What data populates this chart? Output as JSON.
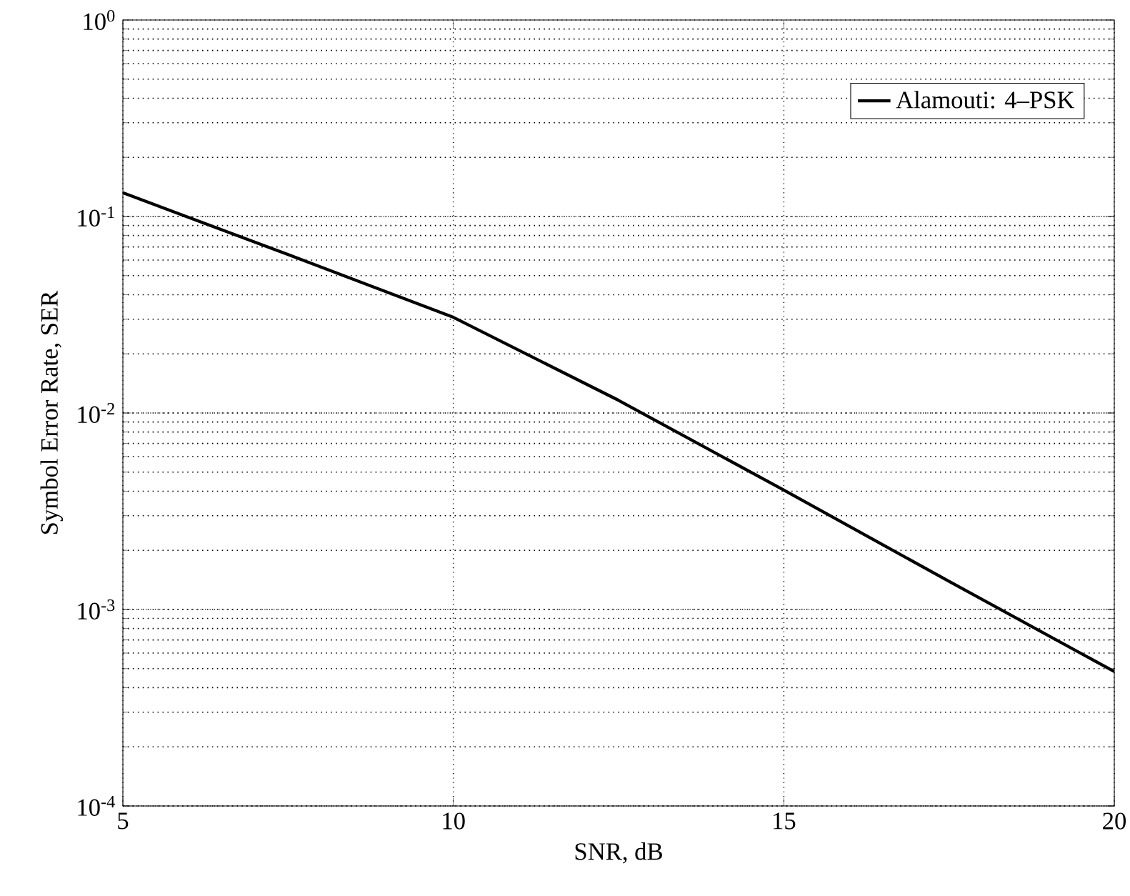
{
  "chart_data": {
    "type": "line",
    "xlabel": "SNR, dB",
    "ylabel": "Symbol Error Rate, SER",
    "x": [
      5,
      7.5,
      10,
      12.5,
      15,
      17.5,
      20
    ],
    "series": [
      {
        "name": "Alamouti: 4–PSK",
        "color": "#000000",
        "values": [
          0.132,
          0.064,
          0.0307,
          0.0116,
          0.00405,
          0.00139,
          0.000483
        ]
      }
    ],
    "log": "y",
    "xlim": [
      5,
      20
    ],
    "ylim": [
      0.0001,
      1
    ],
    "xticks": [
      5,
      10,
      15,
      20
    ],
    "yticks": [
      {
        "value": 0.0001,
        "label": "10$^{-4}$"
      },
      {
        "value": 0.001,
        "label": "10$^{-3}$"
      },
      {
        "value": 0.01,
        "label": "10$^{-2}$"
      },
      {
        "value": 0.1,
        "label": "10$^{-1}$"
      },
      {
        "value": 1,
        "label": "10$^{0}$"
      }
    ],
    "grid": true,
    "legend": "top right",
    "marker": "none",
    "line_style": "solid"
  }
}
